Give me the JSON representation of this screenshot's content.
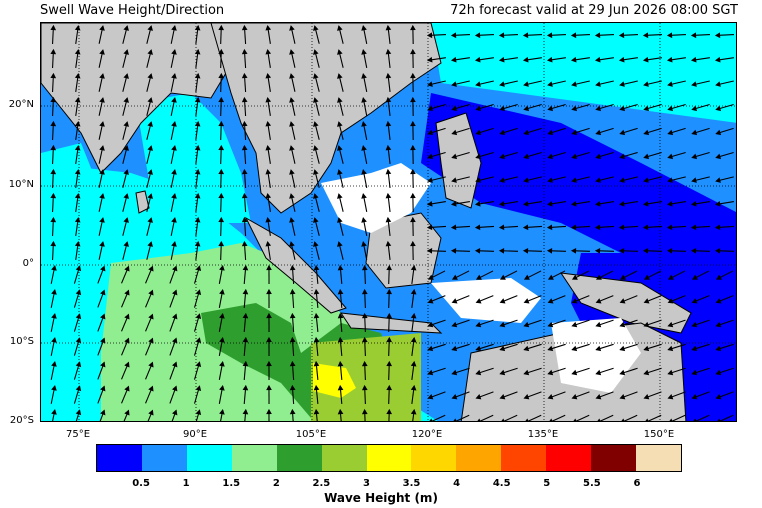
{
  "header": {
    "title": "Swell Wave Height/Direction",
    "forecast": "72h forecast valid at 29 Jun 2026 08:00 SGT"
  },
  "map": {
    "lat_labels": [
      "20°N",
      "10°N",
      "0°",
      "10°S",
      "20°S"
    ],
    "lon_labels": [
      "75°E",
      "90°E",
      "105°E",
      "120°E",
      "135°E",
      "150°E"
    ],
    "land_color": "#c8c8c8",
    "gridlines": "dotted"
  },
  "colorbar": {
    "title": "Wave Height (m)",
    "ticks": [
      "0.5",
      "1",
      "1.5",
      "2",
      "2.5",
      "3",
      "3.5",
      "4",
      "4.5",
      "5",
      "5.5",
      "6"
    ],
    "colors": [
      "#0000ff",
      "#1e90ff",
      "#00ffff",
      "#90ee90",
      "#2e9e2e",
      "#9acd32",
      "#ffff00",
      "#ffd700",
      "#ffa500",
      "#ff4500",
      "#ff0000",
      "#800000",
      "#f5deb3"
    ]
  }
}
